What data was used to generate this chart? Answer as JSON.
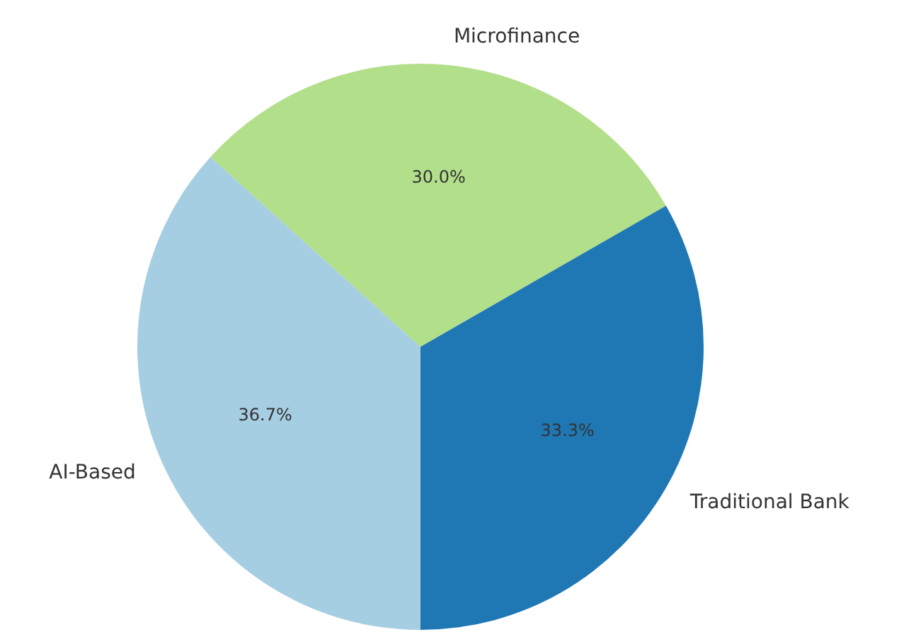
{
  "chart_data": {
    "type": "pie",
    "categories": [
      "Traditional Bank",
      "Microfinance",
      "AI-Based"
    ],
    "values": [
      33.3,
      30.0,
      36.7
    ],
    "colors": [
      "#1f78b4",
      "#b2df8a",
      "#a6cee3"
    ],
    "value_labels": [
      "33.3%",
      "30.0%",
      "36.7%"
    ],
    "legend": false
  }
}
